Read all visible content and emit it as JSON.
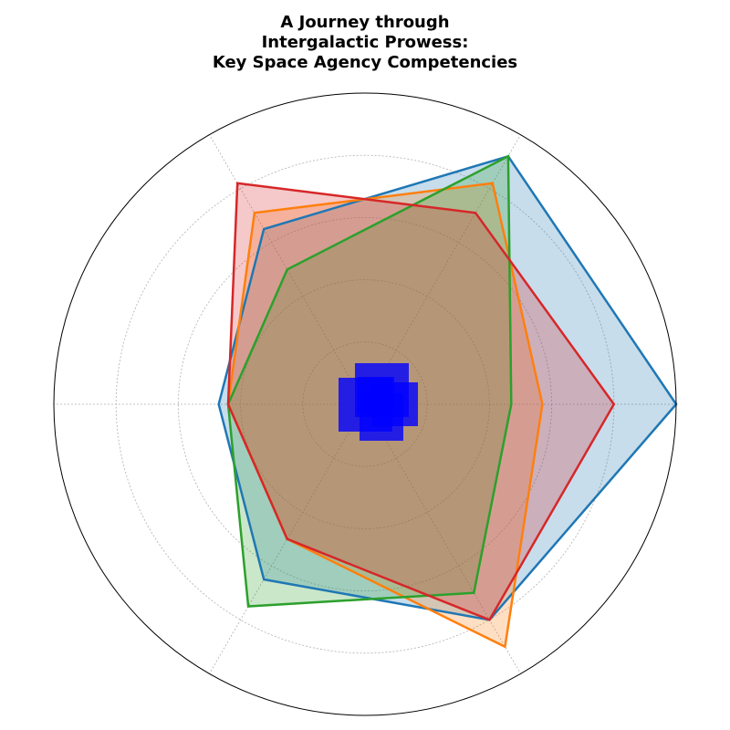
{
  "chart_data": {
    "type": "radar",
    "title_lines": [
      "A Journey through",
      "Intergalactic Prowess:",
      "Key Space Agency Competencies"
    ],
    "axes_count": 6,
    "rmax": 100,
    "radial_gridlines": [
      20,
      40,
      60,
      80
    ],
    "grid": true,
    "legend": "none",
    "series": [
      {
        "color": "#1f77b4",
        "values": [
          100,
          92,
          65,
          47,
          65,
          80
        ]
      },
      {
        "color": "#ff7f0e",
        "values": [
          57,
          82,
          71,
          44,
          50,
          90
        ]
      },
      {
        "color": "#2ca02c",
        "values": [
          47,
          92,
          50,
          44,
          75,
          70
        ]
      },
      {
        "color": "#d62728",
        "values": [
          80,
          71,
          82,
          44,
          50,
          80
        ]
      }
    ],
    "center_markers": {
      "color": "#0000ff",
      "note_values": []
    }
  }
}
